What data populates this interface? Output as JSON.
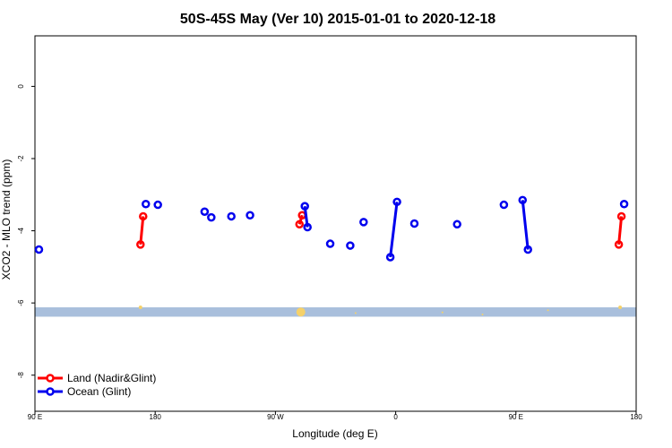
{
  "chart_data": {
    "type": "scatter",
    "title": "50S-45S May (Ver 10)   2015-01-01 to 2020-12-18",
    "xlabel": "Longitude (deg E)",
    "ylabel": "XCO2 - MLO trend (ppm)",
    "xlim": [
      90,
      540
    ],
    "ylim": [
      -9.0,
      1.4
    ],
    "x_ticks": [
      {
        "value": 90,
        "label": "90 E"
      },
      {
        "value": 180,
        "label": "180"
      },
      {
        "value": 270,
        "label": "90 W"
      },
      {
        "value": 360,
        "label": "0"
      },
      {
        "value": 450,
        "label": "90 E"
      },
      {
        "value": 540,
        "label": "180"
      }
    ],
    "y_ticks": [
      {
        "value": 0,
        "label": "0"
      },
      {
        "value": -2,
        "label": "-2"
      },
      {
        "value": -4,
        "label": "-4"
      },
      {
        "value": -6,
        "label": "-6"
      },
      {
        "value": -8,
        "label": "-8"
      }
    ],
    "band": {
      "y_range": [
        -6.38,
        -6.12
      ],
      "color": "#a9bfdc"
    },
    "band_marks": [
      {
        "x": 169,
        "y": -6.12,
        "size": 2
      },
      {
        "x": 289,
        "y": -6.25,
        "size": 5
      },
      {
        "x": 330,
        "y": -6.28,
        "size": 1
      },
      {
        "x": 474,
        "y": -6.2,
        "size": 1
      },
      {
        "x": 395,
        "y": -6.26,
        "size": 1
      },
      {
        "x": 425,
        "y": -6.32,
        "size": 1
      },
      {
        "x": 528,
        "y": -6.12,
        "size": 2
      }
    ],
    "band_mark_color": "#f5d16a",
    "series": [
      {
        "name": "Land (Nadir&Glint)",
        "color": "#ff0000",
        "points": [
          {
            "x": 169,
            "y": -4.38
          },
          {
            "x": 171,
            "y": -3.6
          },
          {
            "x": 288,
            "y": -3.82
          },
          {
            "x": 290,
            "y": -3.57
          },
          {
            "x": 527,
            "y": -4.38
          },
          {
            "x": 529,
            "y": -3.6
          }
        ],
        "segments": [
          [
            0,
            1
          ],
          [
            2,
            3
          ],
          [
            4,
            5
          ]
        ]
      },
      {
        "name": "Ocean (Glint)",
        "color": "#0000ee",
        "points": [
          {
            "x": 93,
            "y": -4.52
          },
          {
            "x": 173,
            "y": -3.26
          },
          {
            "x": 182,
            "y": -3.28
          },
          {
            "x": 217,
            "y": -3.47
          },
          {
            "x": 222,
            "y": -3.63
          },
          {
            "x": 237,
            "y": -3.6
          },
          {
            "x": 251,
            "y": -3.57
          },
          {
            "x": 292,
            "y": -3.32
          },
          {
            "x": 294,
            "y": -3.9
          },
          {
            "x": 311,
            "y": -4.36
          },
          {
            "x": 326,
            "y": -4.41
          },
          {
            "x": 336,
            "y": -3.76
          },
          {
            "x": 356,
            "y": -4.73
          },
          {
            "x": 361,
            "y": -3.2
          },
          {
            "x": 374,
            "y": -3.8
          },
          {
            "x": 406,
            "y": -3.82
          },
          {
            "x": 441,
            "y": -3.28
          },
          {
            "x": 455,
            "y": -3.15
          },
          {
            "x": 459,
            "y": -4.52
          },
          {
            "x": 531,
            "y": -3.26
          }
        ],
        "segments": [
          [
            7,
            8
          ],
          [
            12,
            13
          ],
          [
            17,
            18
          ]
        ]
      }
    ],
    "legend": {
      "position": "bottom-left"
    }
  }
}
